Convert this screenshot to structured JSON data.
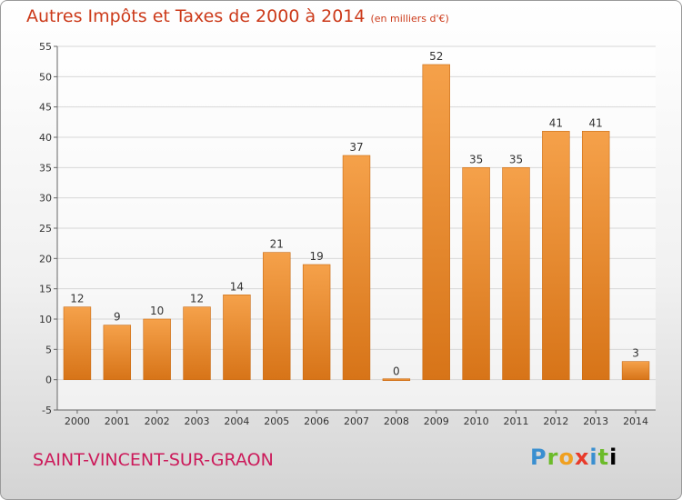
{
  "title": "Autres Impôts et Taxes de 2000 à 2014",
  "subtitle": "(en milliers d'€)",
  "town": "SAINT-VINCENT-SUR-GRAON",
  "logo": [
    "P",
    "r",
    "o",
    "x",
    "i",
    "t",
    "i"
  ],
  "colors": {
    "bar_light": "#f5a14a",
    "bar_dark": "#d77418",
    "axis_text": "#333333",
    "grid": "#d7d7d7"
  },
  "chart_data": {
    "type": "bar",
    "title": "Autres Impôts et Taxes de 2000 à 2014",
    "subtitle": "(en milliers d'€)",
    "categories": [
      "2000",
      "2001",
      "2002",
      "2003",
      "2004",
      "2005",
      "2006",
      "2007",
      "2008",
      "2009",
      "2010",
      "2011",
      "2012",
      "2013",
      "2014"
    ],
    "values": [
      12,
      9,
      10,
      12,
      14,
      21,
      19,
      37,
      0,
      52,
      35,
      35,
      41,
      41,
      3
    ],
    "ylim": [
      -5,
      55
    ],
    "yticks": [
      -5,
      0,
      5,
      10,
      15,
      20,
      25,
      30,
      35,
      40,
      45,
      50,
      55
    ],
    "grid": true,
    "xlabel": "",
    "ylabel": ""
  }
}
